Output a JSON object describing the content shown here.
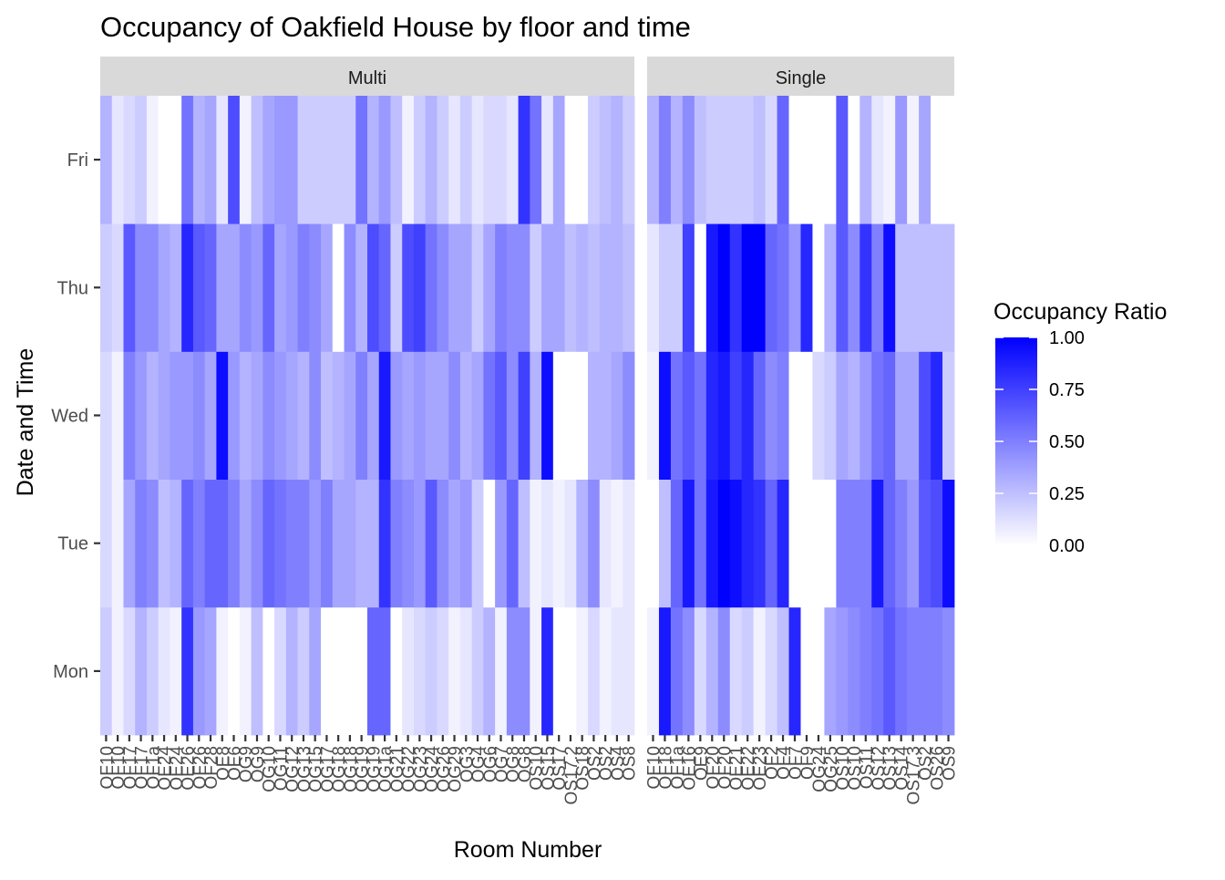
{
  "chart_data": {
    "type": "heatmap",
    "title": "Occupancy of Oakfield House by floor and time",
    "xlabel": "Room Number",
    "ylabel": "Date and Time",
    "y_categories": [
      "Mon",
      "Tue",
      "Wed",
      "Thu",
      "Fri"
    ],
    "facets": [
      {
        "name": "Multi",
        "rooms": [
          "OF10",
          "OF10",
          "OF17",
          "OF17",
          "OF1a",
          "OE24",
          "OE24",
          "OE26",
          "OF26",
          "OF28",
          "OE8",
          "OE6",
          "OG9",
          "OG9",
          "OG10",
          "OG11",
          "OG12",
          "OG13",
          "OG15",
          "OG17",
          "OG18",
          "OG18",
          "OG19",
          "OG19",
          "OG1a",
          "OG21",
          "OG22",
          "OG23",
          "OG24",
          "OG26",
          "OG29",
          "OG3",
          "OG4",
          "OG6",
          "OG7",
          "OG8",
          "OG8",
          "OS10",
          "OS15",
          "OS17",
          "OS17.2",
          "OS18",
          "OS2",
          "OS2",
          "OS4",
          "OS8"
        ],
        "values": {
          "Mon": [
            0.2,
            0.05,
            0.15,
            0.3,
            0.2,
            0.1,
            0.05,
            0.8,
            0.4,
            0.35,
            0.05,
            0.0,
            0.05,
            0.25,
            0.0,
            0.15,
            0.3,
            0.2,
            0.35,
            0.0,
            0.0,
            0.0,
            0.0,
            0.6,
            0.6,
            0.0,
            0.1,
            0.15,
            0.2,
            0.15,
            0.05,
            0.1,
            0.2,
            0.3,
            0.05,
            0.45,
            0.45,
            0.05,
            0.85,
            0.0,
            0.0,
            0.05,
            0.15,
            0.05,
            0.1,
            0.1
          ],
          "Tue": [
            0.15,
            0.05,
            0.35,
            0.5,
            0.45,
            0.25,
            0.3,
            0.6,
            0.5,
            0.6,
            0.6,
            0.5,
            0.35,
            0.45,
            0.6,
            0.55,
            0.5,
            0.5,
            0.4,
            0.5,
            0.35,
            0.35,
            0.3,
            0.3,
            0.8,
            0.5,
            0.45,
            0.4,
            0.65,
            0.45,
            0.35,
            0.4,
            0.2,
            0.0,
            0.4,
            0.6,
            0.25,
            0.05,
            0.1,
            0.05,
            0.1,
            0.3,
            0.45,
            0.1,
            0.05,
            0.1
          ],
          "Wed": [
            0.15,
            0.05,
            0.5,
            0.4,
            0.3,
            0.35,
            0.4,
            0.4,
            0.45,
            0.35,
            0.95,
            0.4,
            0.3,
            0.35,
            0.45,
            0.4,
            0.35,
            0.3,
            0.45,
            0.25,
            0.3,
            0.35,
            0.5,
            0.35,
            0.9,
            0.4,
            0.35,
            0.4,
            0.35,
            0.35,
            0.45,
            0.3,
            0.35,
            0.55,
            0.65,
            0.45,
            0.75,
            0.3,
            0.95,
            0.0,
            0.0,
            0.0,
            0.3,
            0.3,
            0.35,
            0.45
          ],
          "Thu": [
            0.2,
            0.15,
            0.65,
            0.45,
            0.45,
            0.35,
            0.3,
            0.85,
            0.65,
            0.6,
            0.35,
            0.35,
            0.45,
            0.4,
            0.6,
            0.35,
            0.4,
            0.5,
            0.45,
            0.35,
            0.0,
            0.45,
            0.3,
            0.7,
            0.6,
            0.2,
            0.7,
            0.75,
            0.55,
            0.45,
            0.35,
            0.35,
            0.2,
            0.35,
            0.5,
            0.45,
            0.45,
            0.2,
            0.35,
            0.35,
            0.25,
            0.3,
            0.25,
            0.3,
            0.3,
            0.25
          ],
          "Fri": [
            0.3,
            0.1,
            0.15,
            0.2,
            0.05,
            0.0,
            0.0,
            0.55,
            0.3,
            0.35,
            0.1,
            0.7,
            0.05,
            0.25,
            0.35,
            0.4,
            0.4,
            0.2,
            0.2,
            0.2,
            0.2,
            0.2,
            0.55,
            0.3,
            0.4,
            0.25,
            0.05,
            0.2,
            0.3,
            0.2,
            0.1,
            0.2,
            0.1,
            0.15,
            0.15,
            0.1,
            0.8,
            0.55,
            0.1,
            0.35,
            0.0,
            0.0,
            0.2,
            0.25,
            0.3,
            0.2
          ]
        }
      },
      {
        "name": "Single",
        "rooms": [
          "OF10",
          "OF18",
          "OF1a",
          "OE16",
          "OE9",
          "OF20",
          "OF20",
          "OE21",
          "OE22",
          "OE23",
          "OF2",
          "OF4",
          "OF7",
          "OF9",
          "OG24",
          "OG25",
          "OS10",
          "OS10",
          "OS11",
          "OS12",
          "OS13",
          "OS14",
          "OS17.3",
          "OS2",
          "OS26",
          "OS9"
        ],
        "values": {
          "Mon": [
            0.05,
            0.9,
            0.55,
            0.45,
            0.15,
            0.3,
            0.45,
            0.15,
            0.2,
            0.05,
            0.15,
            0.25,
            0.85,
            0.0,
            0.0,
            0.35,
            0.4,
            0.45,
            0.5,
            0.55,
            0.65,
            0.55,
            0.5,
            0.5,
            0.5,
            0.45
          ],
          "Tue": [
            0.0,
            0.25,
            0.6,
            0.9,
            0.55,
            0.9,
            1.0,
            0.95,
            0.85,
            0.8,
            0.6,
            0.85,
            0.0,
            0.0,
            0.0,
            0.0,
            0.5,
            0.5,
            0.5,
            0.9,
            0.6,
            0.5,
            0.4,
            0.65,
            0.7,
            0.95
          ],
          "Wed": [
            0.05,
            0.95,
            0.55,
            0.65,
            0.55,
            0.85,
            0.9,
            0.75,
            0.85,
            0.6,
            0.45,
            0.5,
            0.0,
            0.0,
            0.15,
            0.2,
            0.35,
            0.3,
            0.4,
            0.55,
            0.6,
            0.35,
            0.35,
            0.7,
            0.85,
            0.2
          ],
          "Thu": [
            0.1,
            0.2,
            0.2,
            0.75,
            0.0,
            0.9,
            1.0,
            0.8,
            1.0,
            1.0,
            0.6,
            0.55,
            0.4,
            0.85,
            0.0,
            0.3,
            0.65,
            0.45,
            0.8,
            0.5,
            0.95,
            0.25,
            0.25,
            0.25,
            0.25,
            0.25
          ],
          "Fri": [
            0.3,
            0.5,
            0.3,
            0.45,
            0.25,
            0.2,
            0.2,
            0.2,
            0.2,
            0.25,
            0.15,
            0.6,
            0.0,
            0.0,
            0.0,
            0.0,
            0.65,
            0.0,
            0.3,
            0.1,
            0.05,
            0.4,
            0.05,
            0.35,
            0.0,
            0.0
          ]
        }
      }
    ],
    "legend": {
      "title": "Occupancy Ratio",
      "ticks": [
        1.0,
        0.75,
        0.5,
        0.25,
        0.0
      ],
      "tick_labels": [
        "1.00",
        "0.75",
        "0.50",
        "0.25",
        "0.00"
      ],
      "placement": "right"
    },
    "color_scale": {
      "low": "#ffffff",
      "high": "#0000ff",
      "range": [
        0,
        1
      ]
    },
    "panel_background": "#ebebeb",
    "strip_background": "#d9d9d9",
    "grid": true
  }
}
